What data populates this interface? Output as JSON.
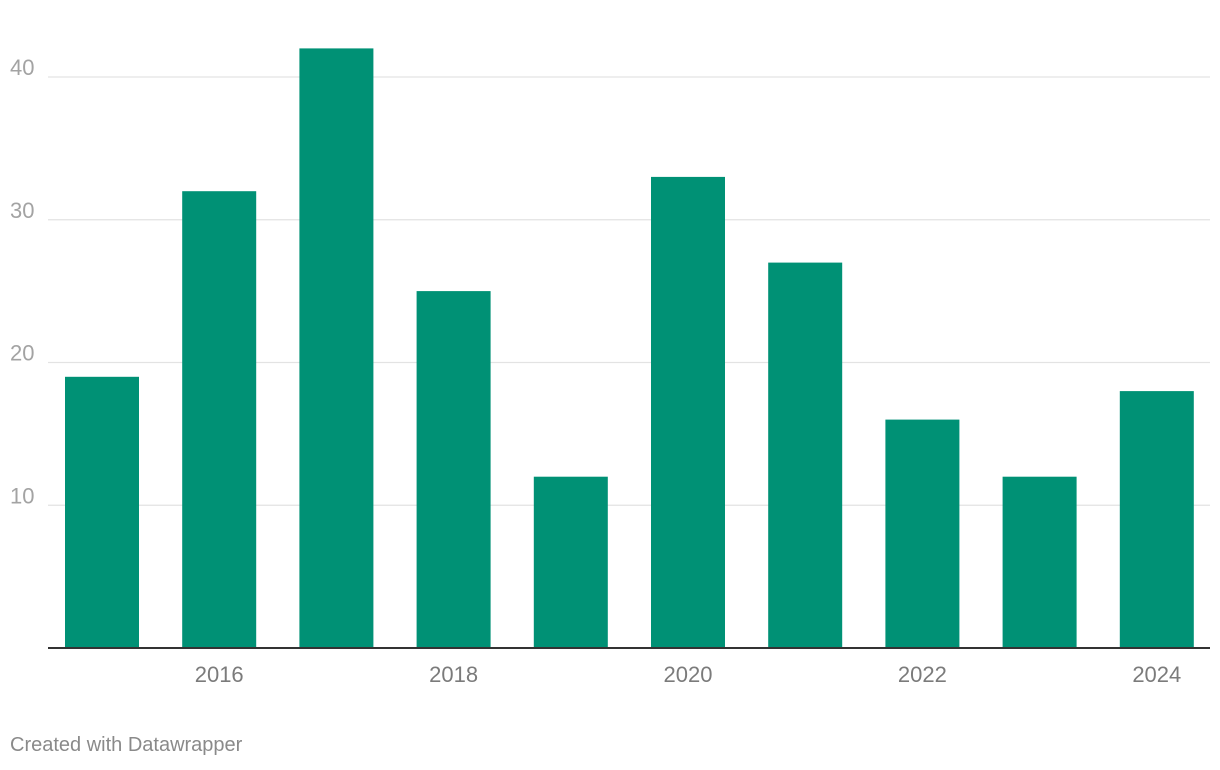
{
  "chart_data": {
    "type": "bar",
    "categories": [
      "2015",
      "2016",
      "2017",
      "2018",
      "2019",
      "2020",
      "2021",
      "2022",
      "2023",
      "2024"
    ],
    "values": [
      19,
      32,
      42,
      25,
      12,
      33,
      27,
      16,
      12,
      18
    ],
    "x_tick_labels": [
      "2016",
      "2018",
      "2020",
      "2022",
      "2024"
    ],
    "y_ticks": [
      10,
      20,
      30,
      40
    ],
    "ylim": [
      0,
      44
    ],
    "title": "",
    "xlabel": "",
    "ylabel": "",
    "grid": true,
    "bar_color": "#009175"
  },
  "footer": {
    "credit": "Created with Datawrapper"
  }
}
